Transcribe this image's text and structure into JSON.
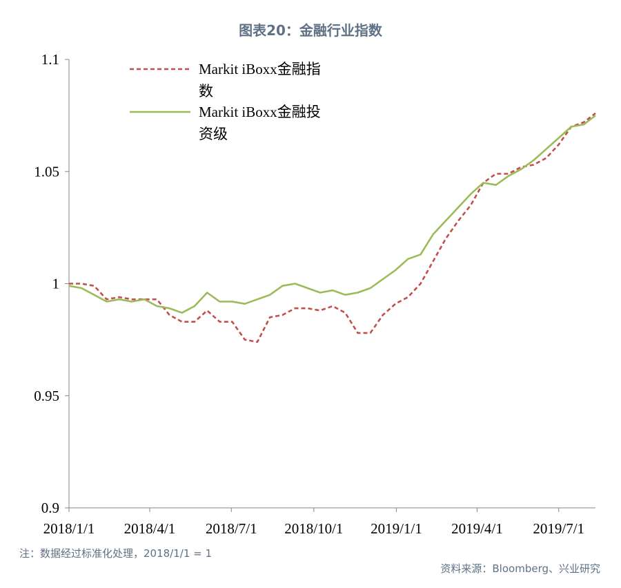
{
  "chart_data": {
    "type": "line",
    "title": "图表20：金融行业指数",
    "x_ticks": [
      "2018/1/1",
      "2018/4/1",
      "2018/7/1",
      "2018/10/1",
      "2019/1/1",
      "2019/4/1",
      "2019/7/1"
    ],
    "y_ticks": [
      "1.1",
      "1.05",
      "1",
      "0.95",
      "0.9"
    ],
    "ylim": [
      0.9,
      1.1
    ],
    "xlim": [
      "2018-01-01",
      "2019-08-11"
    ],
    "grid": false,
    "legend_position": "top-left",
    "series": [
      {
        "name_lines": [
          "Markit iBoxx金融指",
          "数"
        ],
        "color": "#c0504d",
        "style": "dashed",
        "x": [
          "2018-01-01",
          "2018-01-15",
          "2018-01-29",
          "2018-02-12",
          "2018-02-26",
          "2018-03-12",
          "2018-03-26",
          "2018-04-09",
          "2018-04-23",
          "2018-05-07",
          "2018-05-21",
          "2018-06-04",
          "2018-06-18",
          "2018-07-02",
          "2018-07-16",
          "2018-07-30",
          "2018-08-13",
          "2018-08-27",
          "2018-09-10",
          "2018-09-24",
          "2018-10-08",
          "2018-10-22",
          "2018-11-05",
          "2018-11-19",
          "2018-12-03",
          "2018-12-17",
          "2018-12-31",
          "2019-01-14",
          "2019-01-28",
          "2019-02-11",
          "2019-02-25",
          "2019-03-11",
          "2019-03-25",
          "2019-04-08",
          "2019-04-22",
          "2019-05-06",
          "2019-05-20",
          "2019-06-03",
          "2019-06-17",
          "2019-07-01",
          "2019-07-15",
          "2019-07-29",
          "2019-08-11"
        ],
        "y": [
          1.0,
          1.0,
          0.999,
          0.993,
          0.994,
          0.993,
          0.993,
          0.993,
          0.986,
          0.983,
          0.983,
          0.988,
          0.983,
          0.983,
          0.975,
          0.974,
          0.985,
          0.986,
          0.989,
          0.989,
          0.988,
          0.99,
          0.987,
          0.978,
          0.978,
          0.986,
          0.991,
          0.994,
          1.0,
          1.01,
          1.02,
          1.028,
          1.035,
          1.045,
          1.049,
          1.049,
          1.052,
          1.053,
          1.056,
          1.062,
          1.07,
          1.072,
          1.076
        ]
      },
      {
        "name_lines": [
          "Markit iBoxx金融投",
          "资级"
        ],
        "color": "#9bbb59",
        "style": "solid",
        "x": [
          "2018-01-01",
          "2018-01-15",
          "2018-01-29",
          "2018-02-12",
          "2018-02-26",
          "2018-03-12",
          "2018-03-26",
          "2018-04-09",
          "2018-04-23",
          "2018-05-07",
          "2018-05-21",
          "2018-06-04",
          "2018-06-18",
          "2018-07-02",
          "2018-07-16",
          "2018-07-30",
          "2018-08-13",
          "2018-08-27",
          "2018-09-10",
          "2018-09-24",
          "2018-10-08",
          "2018-10-22",
          "2018-11-05",
          "2018-11-19",
          "2018-12-03",
          "2018-12-17",
          "2018-12-31",
          "2019-01-14",
          "2019-01-28",
          "2019-02-11",
          "2019-02-25",
          "2019-03-11",
          "2019-03-25",
          "2019-04-08",
          "2019-04-22",
          "2019-05-06",
          "2019-05-20",
          "2019-06-03",
          "2019-06-17",
          "2019-07-01",
          "2019-07-15",
          "2019-07-29",
          "2019-08-11"
        ],
        "y": [
          0.999,
          0.998,
          0.995,
          0.992,
          0.993,
          0.992,
          0.993,
          0.99,
          0.989,
          0.987,
          0.99,
          0.996,
          0.992,
          0.992,
          0.991,
          0.993,
          0.995,
          0.999,
          1.0,
          0.998,
          0.996,
          0.997,
          0.995,
          0.996,
          0.998,
          1.002,
          1.006,
          1.011,
          1.013,
          1.022,
          1.028,
          1.034,
          1.04,
          1.045,
          1.044,
          1.048,
          1.051,
          1.055,
          1.06,
          1.065,
          1.07,
          1.071,
          1.075
        ]
      }
    ]
  },
  "footer": {
    "note": "注：数据经过标准化处理，2018/1/1 = 1",
    "source": "资料来源：Bloomberg、兴业研究"
  }
}
